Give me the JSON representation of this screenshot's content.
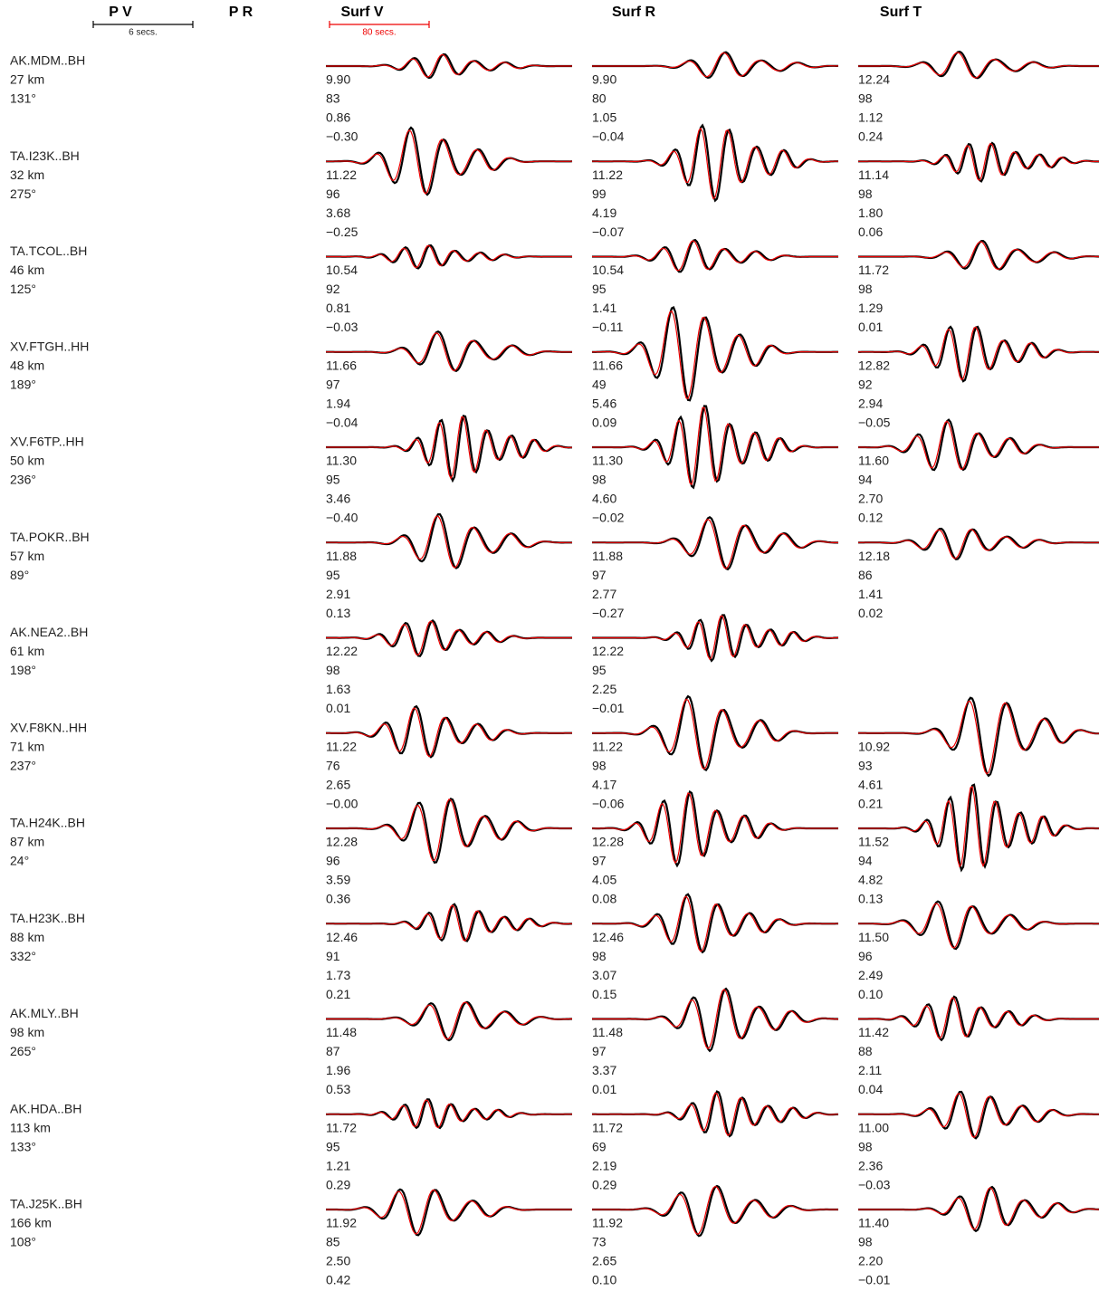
{
  "headers": [
    "P V",
    "P R",
    "Surf V",
    "Surf R",
    "Surf T"
  ],
  "scale_bars": [
    {
      "label": "6 secs."
    },
    {
      "label": "80 secs."
    }
  ],
  "stations": [
    {
      "name": "AK.MDM..BH",
      "distance": "27 km",
      "azimuth": "131°",
      "surf_v": [
        "9.90",
        "83",
        "0.86",
        "−0.30"
      ],
      "surf_r": [
        "9.90",
        "80",
        "1.05",
        "−0.04"
      ],
      "surf_t": [
        "12.24",
        "98",
        "1.12",
        "0.24"
      ]
    },
    {
      "name": "TA.I23K..BH",
      "distance": "32 km",
      "azimuth": "275°",
      "surf_v": [
        "11.22",
        "96",
        "3.68",
        "−0.25"
      ],
      "surf_r": [
        "11.22",
        "99",
        "4.19",
        "−0.07"
      ],
      "surf_t": [
        "11.14",
        "98",
        "1.80",
        "0.06"
      ]
    },
    {
      "name": "TA.TCOL..BH",
      "distance": "46 km",
      "azimuth": "125°",
      "surf_v": [
        "10.54",
        "92",
        "0.81",
        "−0.03"
      ],
      "surf_r": [
        "10.54",
        "95",
        "1.41",
        "−0.11"
      ],
      "surf_t": [
        "11.72",
        "98",
        "1.29",
        "0.01"
      ]
    },
    {
      "name": "XV.FTGH..HH",
      "distance": "48 km",
      "azimuth": "189°",
      "surf_v": [
        "11.66",
        "97",
        "1.94",
        "−0.04"
      ],
      "surf_r": [
        "11.66",
        "49",
        "5.46",
        "0.09"
      ],
      "surf_t": [
        "12.82",
        "92",
        "2.94",
        "−0.05"
      ]
    },
    {
      "name": "XV.F6TP..HH",
      "distance": "50 km",
      "azimuth": "236°",
      "surf_v": [
        "11.30",
        "95",
        "3.46",
        "−0.40"
      ],
      "surf_r": [
        "11.30",
        "98",
        "4.60",
        "−0.02"
      ],
      "surf_t": [
        "11.60",
        "94",
        "2.70",
        "0.12"
      ]
    },
    {
      "name": "TA.POKR..BH",
      "distance": "57 km",
      "azimuth": "89°",
      "surf_v": [
        "11.88",
        "95",
        "2.91",
        "0.13"
      ],
      "surf_r": [
        "11.88",
        "97",
        "2.77",
        "−0.27"
      ],
      "surf_t": [
        "12.18",
        "86",
        "1.41",
        "0.02"
      ]
    },
    {
      "name": "AK.NEA2..BH",
      "distance": "61 km",
      "azimuth": "198°",
      "surf_v": [
        "12.22",
        "98",
        "1.63",
        "0.01"
      ],
      "surf_r": [
        "12.22",
        "95",
        "2.25",
        "−0.01"
      ]
    },
    {
      "name": "XV.F8KN..HH",
      "distance": "71 km",
      "azimuth": "237°",
      "surf_v": [
        "11.22",
        "76",
        "2.65",
        "−0.00"
      ],
      "surf_r": [
        "11.22",
        "98",
        "4.17",
        "−0.06"
      ],
      "surf_t": [
        "10.92",
        "93",
        "4.61",
        "0.21"
      ]
    },
    {
      "name": "TA.H24K..BH",
      "distance": "87 km",
      "azimuth": "24°",
      "surf_v": [
        "12.28",
        "96",
        "3.59",
        "0.36"
      ],
      "surf_r": [
        "12.28",
        "97",
        "4.05",
        "0.08"
      ],
      "surf_t": [
        "11.52",
        "94",
        "4.82",
        "0.13"
      ]
    },
    {
      "name": "TA.H23K..BH",
      "distance": "88 km",
      "azimuth": "332°",
      "surf_v": [
        "12.46",
        "91",
        "1.73",
        "0.21"
      ],
      "surf_r": [
        "12.46",
        "98",
        "3.07",
        "0.15"
      ],
      "surf_t": [
        "11.50",
        "96",
        "2.49",
        "0.10"
      ]
    },
    {
      "name": "AK.MLY..BH",
      "distance": "98 km",
      "azimuth": "265°",
      "surf_v": [
        "11.48",
        "87",
        "1.96",
        "0.53"
      ],
      "surf_r": [
        "11.48",
        "97",
        "3.37",
        "0.01"
      ],
      "surf_t": [
        "11.42",
        "88",
        "2.11",
        "0.04"
      ]
    },
    {
      "name": "AK.HDA..BH",
      "distance": "113 km",
      "azimuth": "133°",
      "surf_v": [
        "11.72",
        "95",
        "1.21",
        "0.29"
      ],
      "surf_r": [
        "11.72",
        "69",
        "2.19",
        "0.29"
      ],
      "surf_t": [
        "11.00",
        "98",
        "2.36",
        "−0.03"
      ]
    },
    {
      "name": "TA.J25K..BH",
      "distance": "166 km",
      "azimuth": "108°",
      "surf_v": [
        "11.92",
        "85",
        "2.50",
        "0.42"
      ],
      "surf_r": [
        "11.92",
        "73",
        "2.65",
        "0.10"
      ],
      "surf_t": [
        "11.40",
        "98",
        "2.20",
        "−0.01"
      ]
    }
  ]
}
